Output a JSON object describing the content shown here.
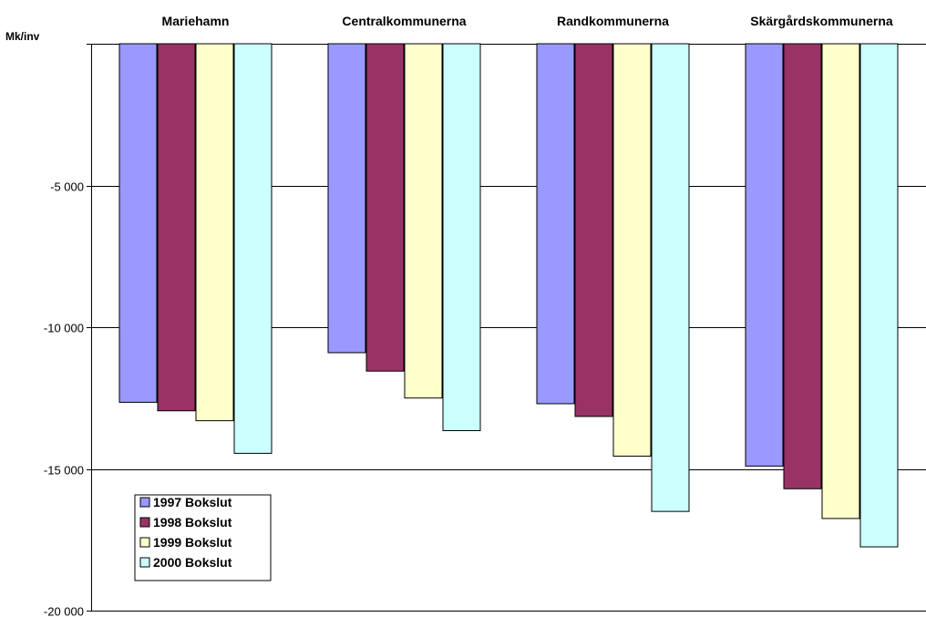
{
  "chart_data": {
    "type": "bar",
    "ylabel": "Mk/inv",
    "categories": [
      "Mariehamn",
      "Centralkommunerna",
      "Randkommunerna",
      "Skärgårdskommunerna"
    ],
    "ylim": [
      -20000,
      0
    ],
    "yticks": [
      {
        "value": 0,
        "label": ""
      },
      {
        "value": -5000,
        "label": "-5 000"
      },
      {
        "value": -10000,
        "label": "-10 000"
      },
      {
        "value": -15000,
        "label": "-15 000"
      },
      {
        "value": -20000,
        "label": "-20 000"
      }
    ],
    "grid": true,
    "legend_position": "bottom-left",
    "series": [
      {
        "name": "1997 Bokslut",
        "color": "#9999ff",
        "values": [
          -12650,
          -10900,
          -12700,
          -14900
        ]
      },
      {
        "name": "1998 Bokslut",
        "color": "#993366",
        "values": [
          -12950,
          -11550,
          -13150,
          -15700
        ]
      },
      {
        "name": "1999 Bokslut",
        "color": "#ffffcc",
        "values": [
          -13300,
          -12500,
          -14550,
          -16750
        ]
      },
      {
        "name": "2000 Bokslut",
        "color": "#ccffff",
        "values": [
          -14450,
          -13650,
          -16500,
          -17750
        ]
      }
    ]
  }
}
